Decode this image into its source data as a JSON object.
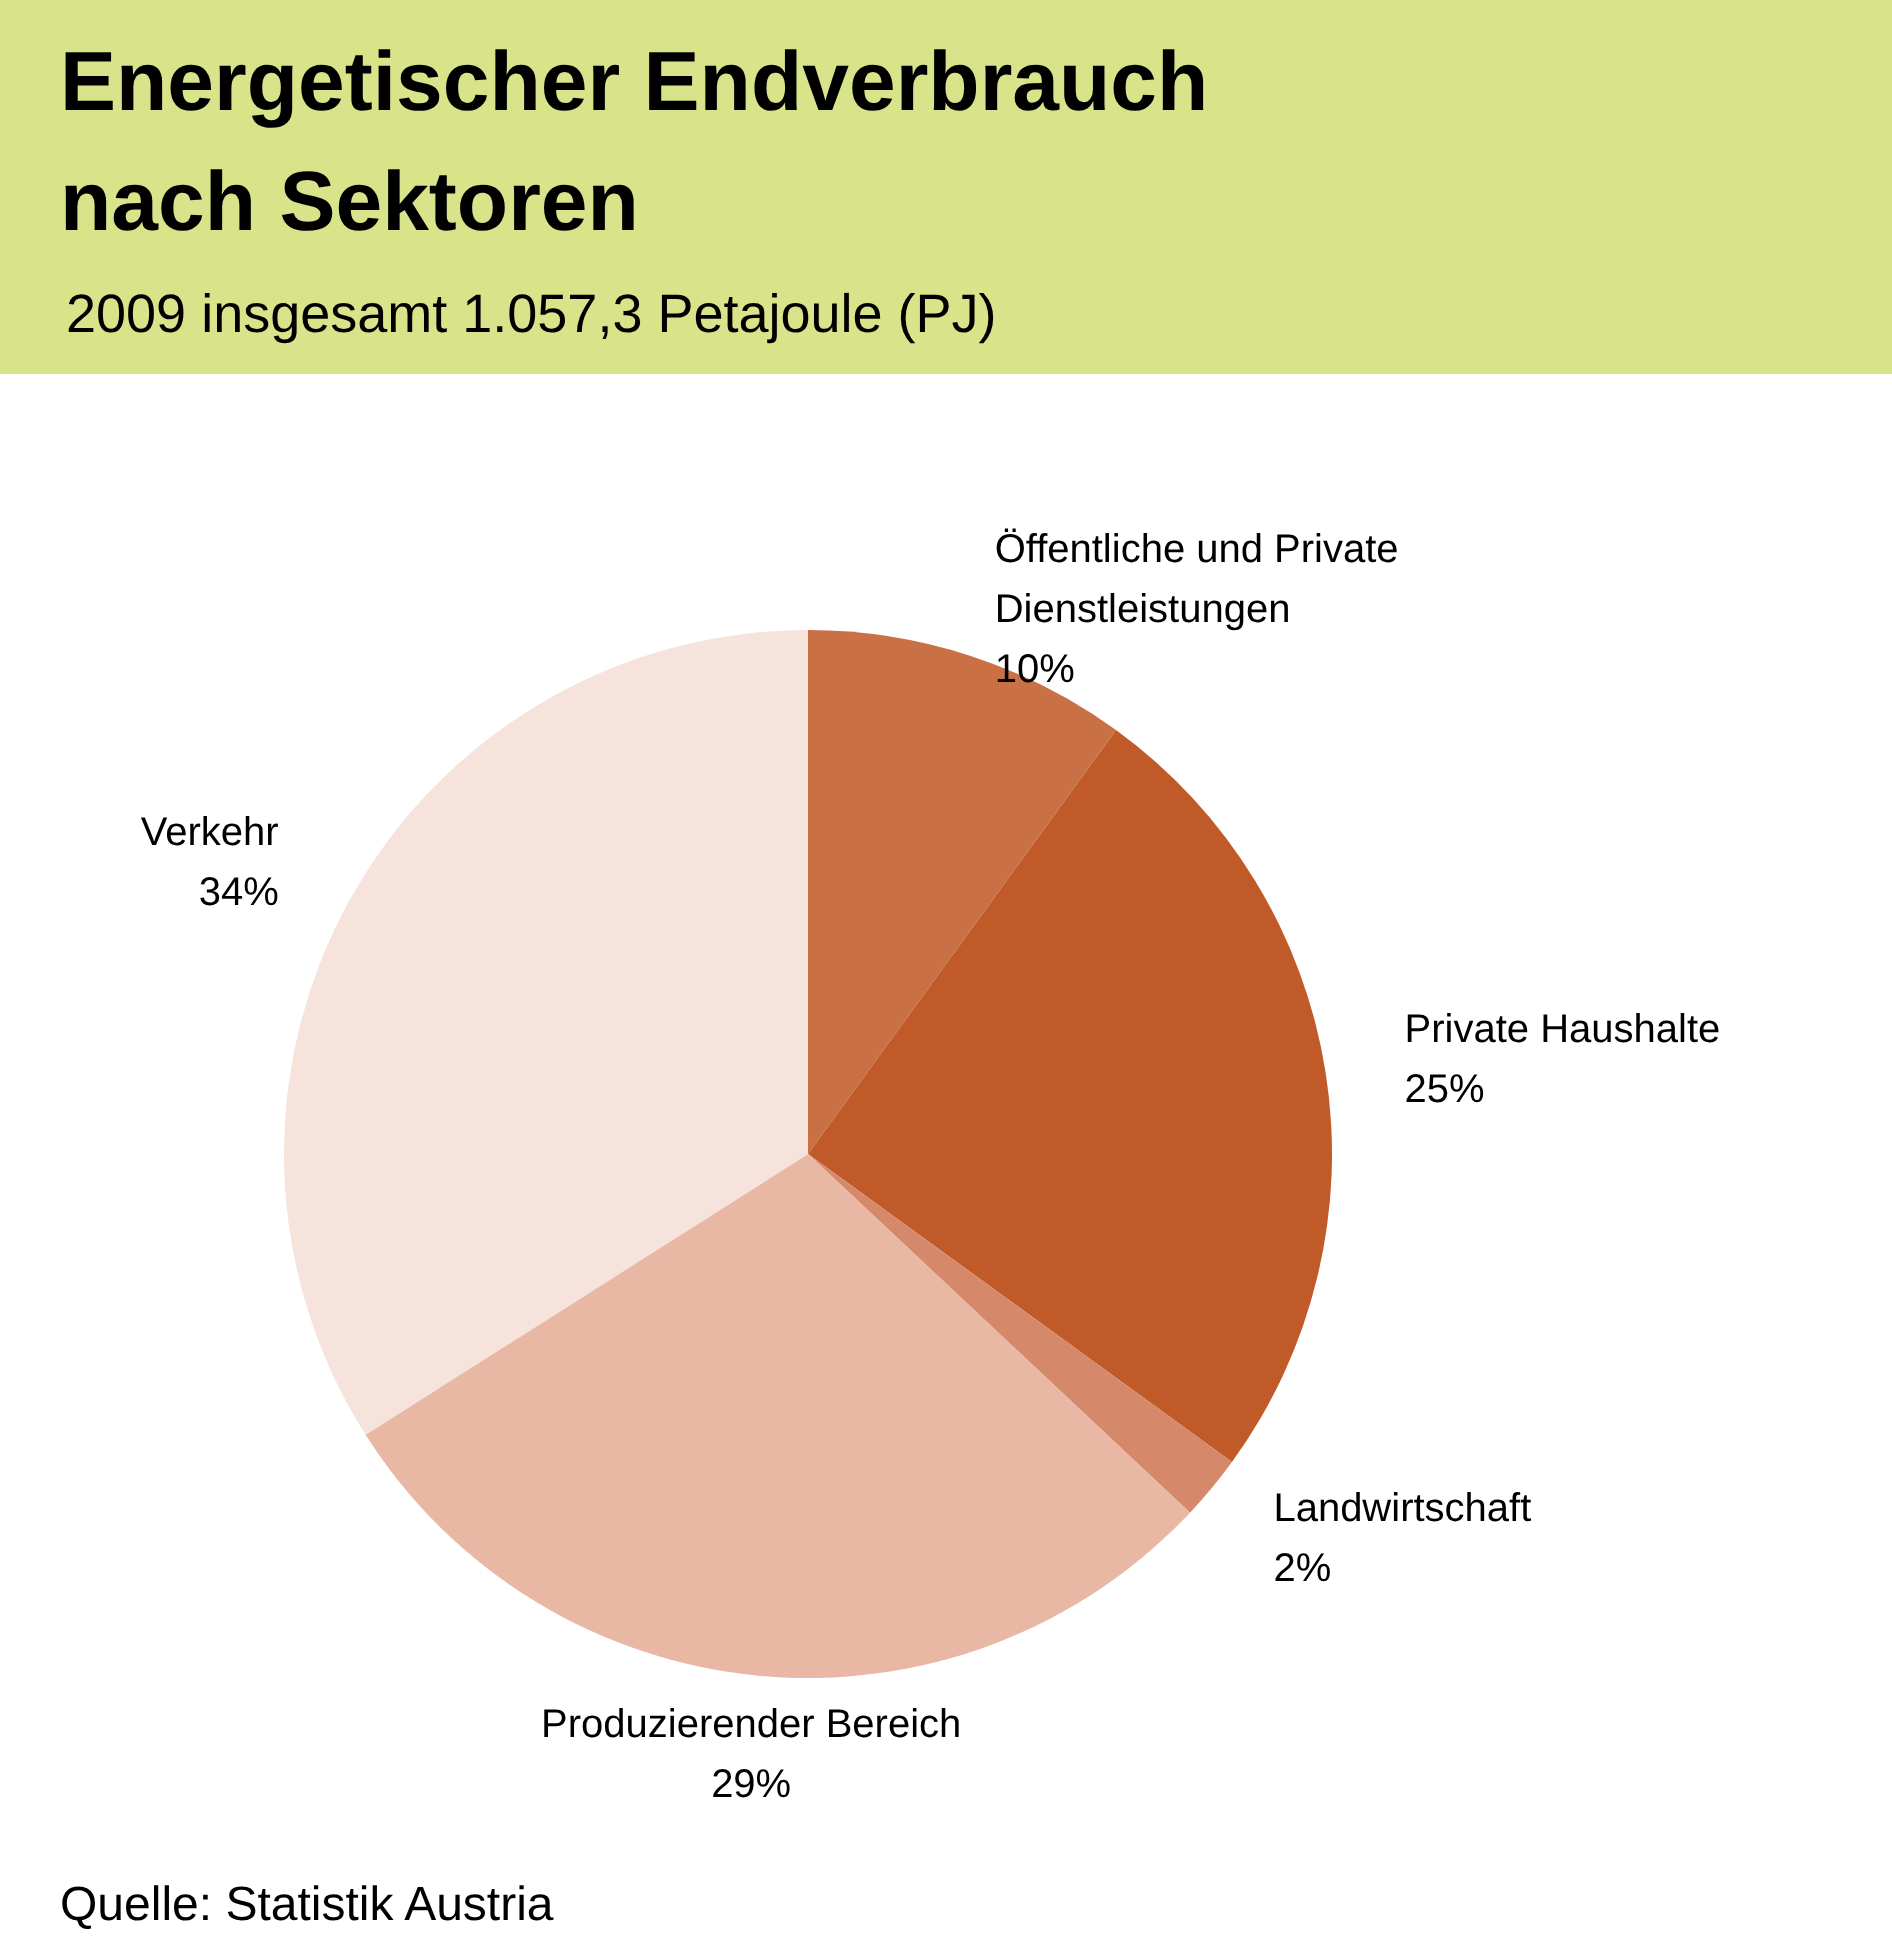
{
  "chart_data": {
    "type": "pie",
    "title": "Energetischer Endverbrauch\nnach Sektoren",
    "subtitle": "2009 insgesamt 1.057,3 Petajoule (PJ)",
    "categories": [
      "Öffentliche und Private\nDienstleistungen",
      "Private Haushalte",
      "Landwirtschaft",
      "Produzierender Bereich",
      "Verkehr"
    ],
    "values": [
      10,
      25,
      2,
      29,
      34
    ],
    "value_labels": [
      "10%",
      "25%",
      "2%",
      "29%",
      "34%"
    ],
    "colors": [
      "#c97145",
      "#c05a28",
      "#d6886a",
      "#e8b8a4",
      "#f5e3dc"
    ],
    "annotations": [
      "Quelle: Statistik Austria"
    ]
  }
}
